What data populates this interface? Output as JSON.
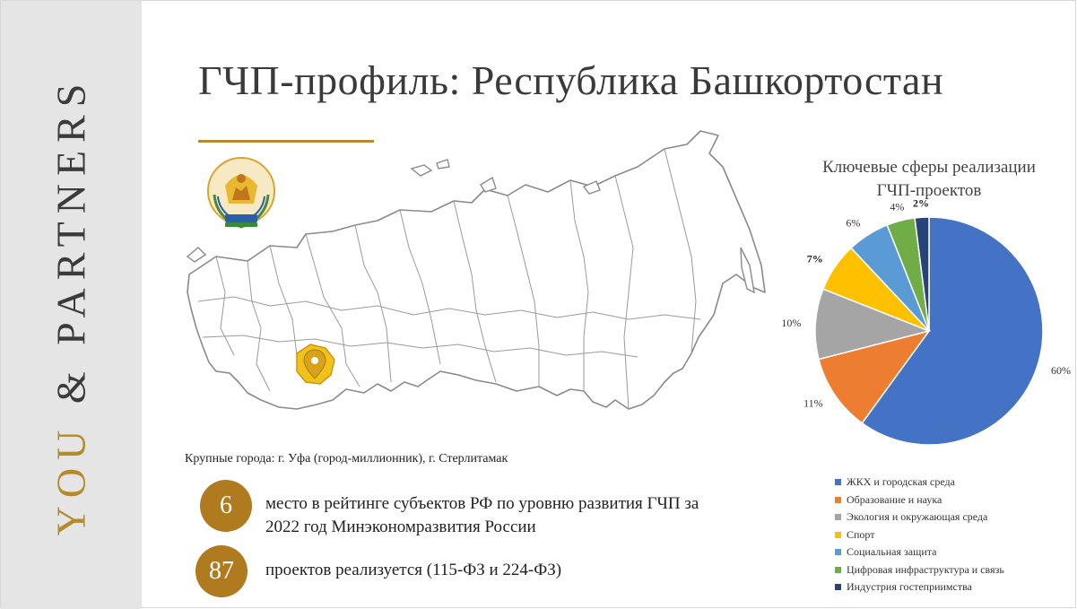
{
  "brand": {
    "you": "YOU",
    "rest": " & PARTNERS"
  },
  "title": "ГЧП-профиль: Республика Башкортостан",
  "cities": "Крупные города: г. Уфа (город-миллионник), г. Стерлитамак",
  "stats": [
    {
      "value": "6",
      "text": "место в рейтинге субъектов РФ по уровню развития ГЧП за 2022 год Минэкономразвития России"
    },
    {
      "value": "87",
      "text": "проектов реализуется (115-ФЗ и 224-ФЗ)"
    }
  ],
  "pie_title": "Ключевые сферы реализации ГЧП-проектов",
  "colors": {
    "accent": "#b58a2c",
    "stat_circle": "#b07a1f",
    "band": "#e5e5e5",
    "region_highlight": "#f2c21b"
  },
  "chart_data": {
    "type": "pie",
    "title": "Ключевые сферы реализации ГЧП-проектов",
    "legend_position": "bottom",
    "slices": [
      {
        "name": "ЖКХ и городская среда",
        "value": 60,
        "label": "60%",
        "color": "#4472c4"
      },
      {
        "name": "Образование и наука",
        "value": 11,
        "label": "11%",
        "color": "#ed7d31"
      },
      {
        "name": "Экология и окружающая среда",
        "value": 10,
        "label": "10%",
        "color": "#a5a5a5"
      },
      {
        "name": "Спорт",
        "value": 7,
        "label": "7%",
        "color": "#ffc000"
      },
      {
        "name": "Социальная защита",
        "value": 6,
        "label": "6%",
        "color": "#5b9bd5"
      },
      {
        "name": "Цифровая инфраструктура и связь",
        "value": 4,
        "label": "4%",
        "color": "#70ad47"
      },
      {
        "name": "Индустрия гостеприимства",
        "value": 2,
        "label": "2%",
        "color": "#264478"
      }
    ]
  }
}
